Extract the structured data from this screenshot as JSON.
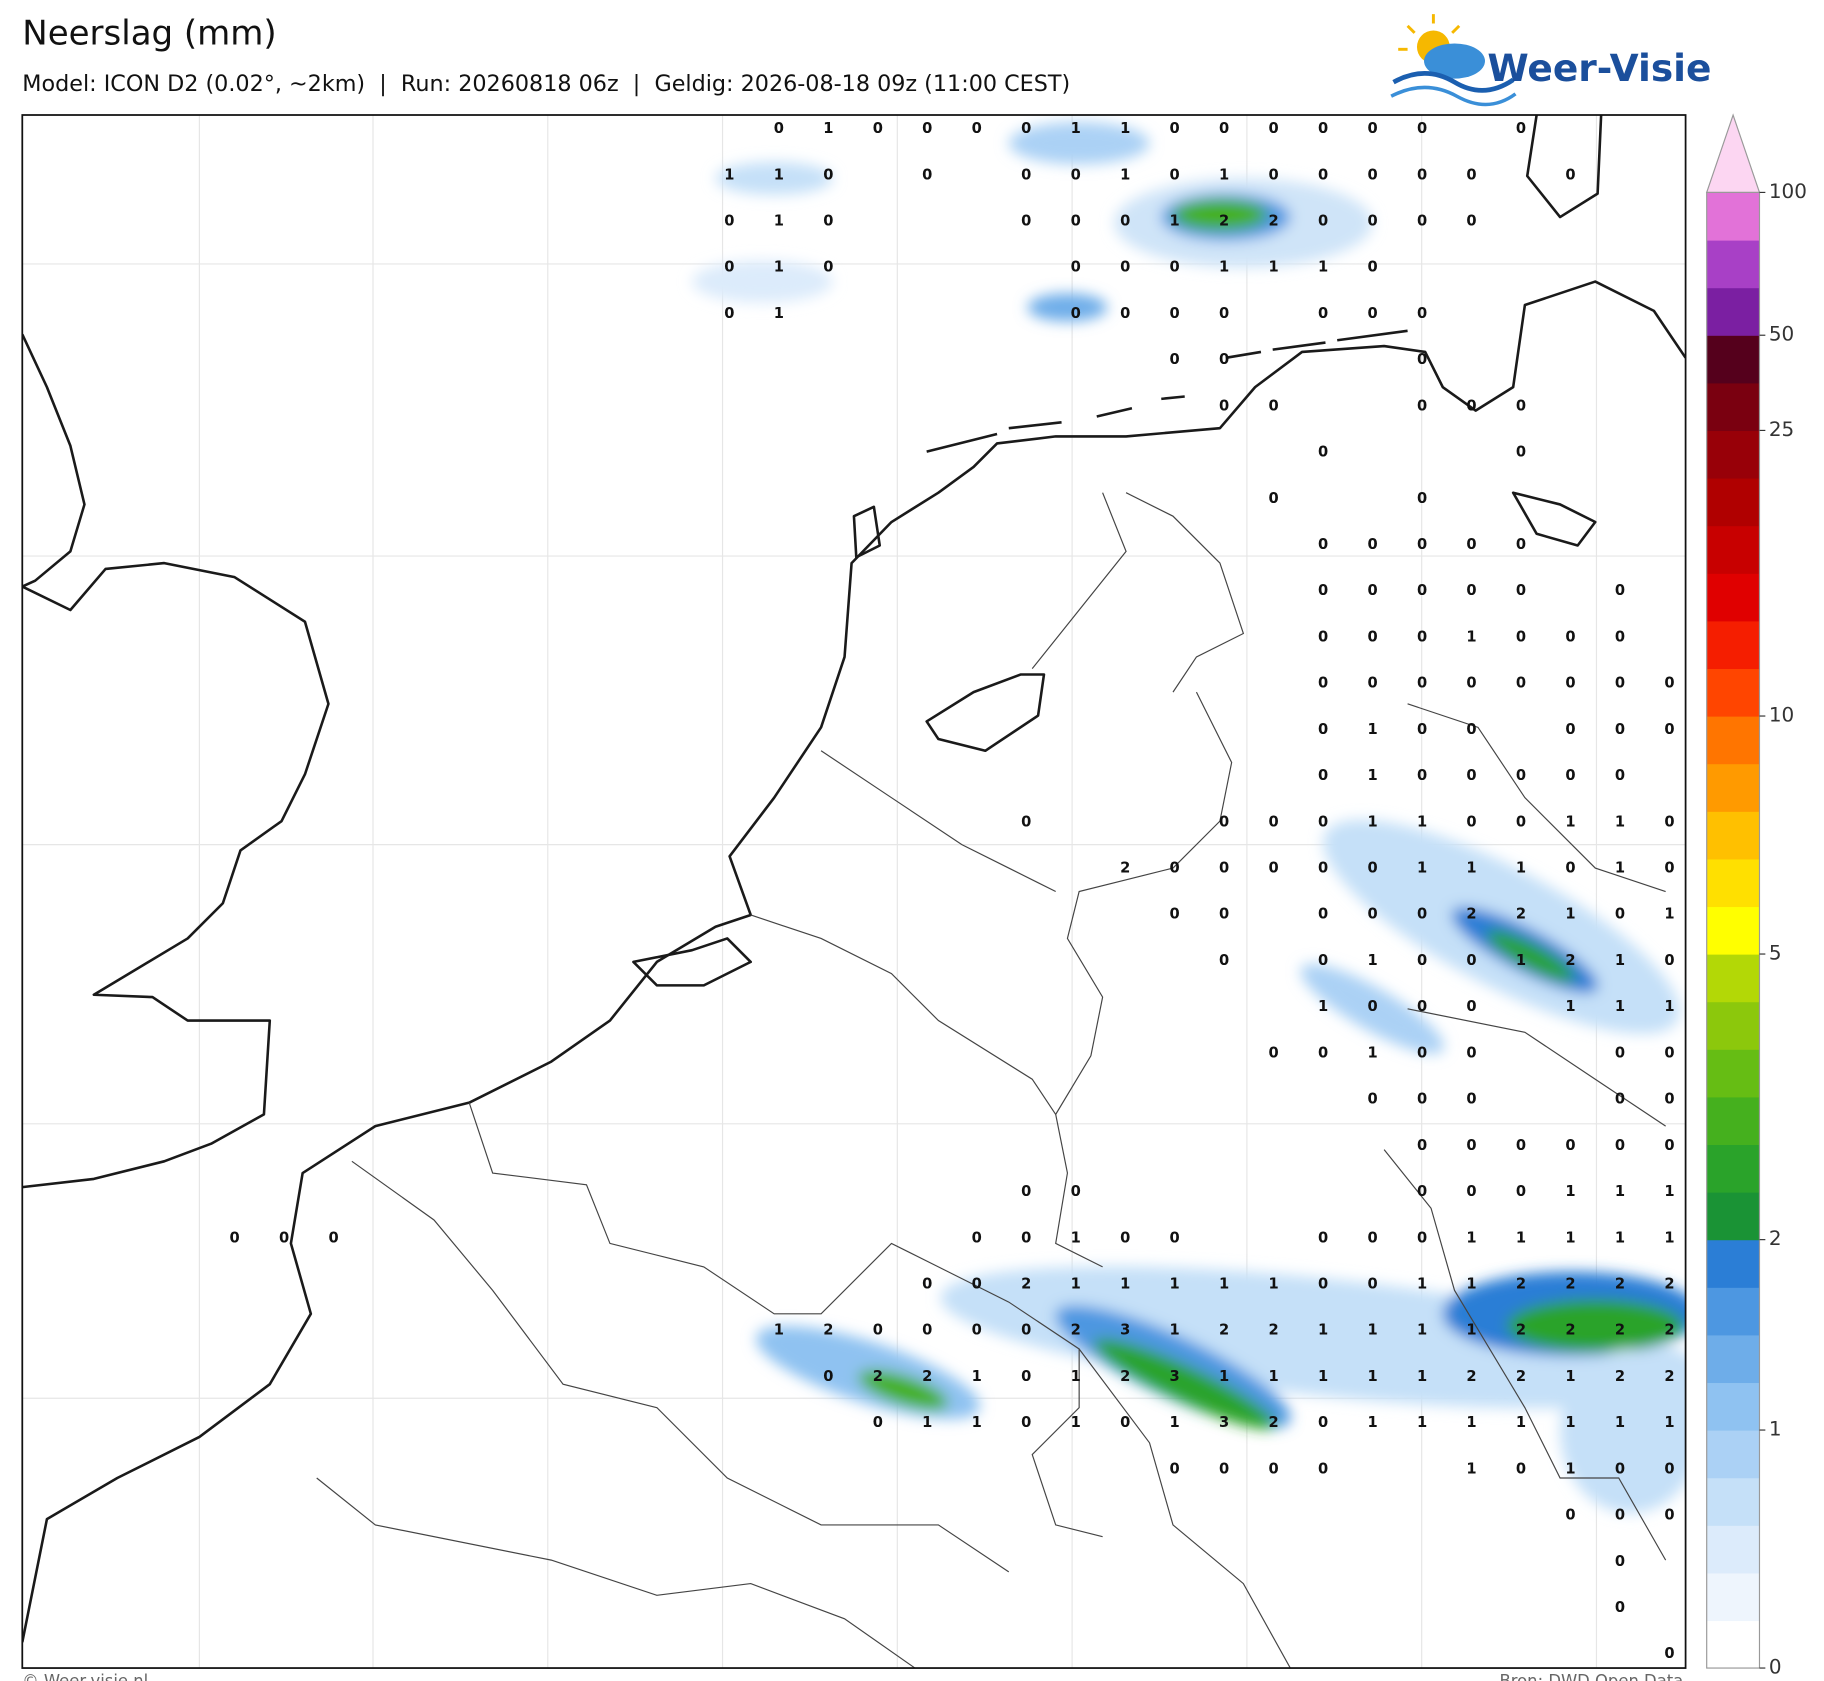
{
  "header": {
    "title": "Neerslag (mm)",
    "subtitle": "Model: ICON D2 (0.02°, ~2km)  |  Run: 20260818 06z  |  Geldig: 2026-08-18 09z (11:00 CEST)",
    "logo": "Weer-Visie"
  },
  "map": {
    "label_rows": [
      [
        null,
        null,
        null,
        null,
        null,
        null,
        null,
        null,
        null,
        null,
        null,
        0,
        1,
        0,
        0,
        0,
        0,
        1,
        1,
        0,
        0,
        0,
        0,
        0,
        0,
        null,
        0,
        null,
        null,
        null
      ],
      [
        null,
        null,
        null,
        null,
        null,
        null,
        null,
        null,
        null,
        null,
        1,
        1,
        0,
        null,
        0,
        null,
        0,
        0,
        1,
        0,
        1,
        0,
        0,
        0,
        0,
        0,
        null,
        0,
        null,
        null
      ],
      [
        null,
        null,
        null,
        null,
        null,
        null,
        null,
        null,
        null,
        null,
        0,
        1,
        0,
        null,
        null,
        null,
        0,
        0,
        0,
        1,
        2,
        2,
        0,
        0,
        0,
        0,
        null,
        null,
        null,
        null
      ],
      [
        null,
        null,
        null,
        null,
        null,
        null,
        null,
        null,
        null,
        null,
        0,
        1,
        0,
        null,
        null,
        null,
        null,
        0,
        0,
        0,
        1,
        1,
        1,
        0,
        null,
        null,
        null,
        null,
        null,
        null
      ],
      [
        null,
        null,
        null,
        null,
        null,
        null,
        null,
        null,
        null,
        null,
        0,
        1,
        null,
        null,
        null,
        null,
        null,
        0,
        0,
        0,
        0,
        null,
        0,
        0,
        0,
        null,
        null,
        null,
        null,
        null
      ],
      [
        null,
        null,
        null,
        null,
        null,
        null,
        null,
        null,
        null,
        null,
        null,
        null,
        null,
        null,
        null,
        null,
        null,
        null,
        null,
        0,
        0,
        null,
        null,
        null,
        0,
        null,
        null,
        null,
        null,
        null
      ],
      [
        null,
        null,
        null,
        null,
        null,
        null,
        null,
        null,
        null,
        null,
        null,
        null,
        null,
        null,
        null,
        null,
        null,
        null,
        null,
        null,
        0,
        0,
        null,
        null,
        0,
        0,
        0,
        null,
        null,
        null
      ],
      [
        null,
        null,
        null,
        null,
        null,
        null,
        null,
        null,
        null,
        null,
        null,
        null,
        null,
        null,
        null,
        null,
        null,
        null,
        null,
        null,
        null,
        null,
        0,
        null,
        null,
        null,
        0,
        null,
        null,
        null
      ],
      [
        null,
        null,
        null,
        null,
        null,
        null,
        null,
        null,
        null,
        null,
        null,
        null,
        null,
        null,
        null,
        null,
        null,
        null,
        null,
        null,
        null,
        0,
        null,
        null,
        0,
        null,
        null,
        null,
        null,
        null
      ],
      [
        null,
        null,
        null,
        null,
        null,
        null,
        null,
        null,
        null,
        null,
        null,
        null,
        null,
        null,
        null,
        null,
        null,
        null,
        null,
        null,
        null,
        null,
        0,
        0,
        0,
        0,
        0,
        null,
        null,
        null
      ],
      [
        null,
        null,
        null,
        null,
        null,
        null,
        null,
        null,
        null,
        null,
        null,
        null,
        null,
        null,
        null,
        null,
        null,
        null,
        null,
        null,
        null,
        null,
        0,
        0,
        0,
        0,
        0,
        null,
        0,
        null
      ],
      [
        null,
        null,
        null,
        null,
        null,
        null,
        null,
        null,
        null,
        null,
        null,
        null,
        null,
        null,
        null,
        null,
        null,
        null,
        null,
        null,
        null,
        null,
        0,
        0,
        0,
        1,
        0,
        0,
        0,
        null
      ],
      [
        null,
        null,
        null,
        null,
        null,
        null,
        null,
        null,
        null,
        null,
        null,
        null,
        null,
        null,
        null,
        null,
        null,
        null,
        null,
        null,
        null,
        null,
        0,
        0,
        0,
        0,
        0,
        0,
        0,
        0
      ],
      [
        null,
        null,
        null,
        null,
        null,
        null,
        null,
        null,
        null,
        null,
        null,
        null,
        null,
        null,
        null,
        null,
        null,
        null,
        null,
        null,
        null,
        null,
        0,
        1,
        0,
        0,
        null,
        0,
        0,
        0
      ],
      [
        null,
        null,
        null,
        null,
        null,
        null,
        null,
        null,
        null,
        null,
        null,
        null,
        null,
        null,
        null,
        null,
        null,
        null,
        null,
        null,
        null,
        null,
        0,
        1,
        0,
        0,
        0,
        0,
        0,
        null
      ],
      [
        null,
        null,
        null,
        null,
        null,
        null,
        null,
        null,
        null,
        null,
        null,
        null,
        null,
        null,
        null,
        null,
        0,
        null,
        null,
        null,
        0,
        0,
        0,
        1,
        1,
        0,
        0,
        1,
        1,
        0
      ],
      [
        null,
        null,
        null,
        null,
        null,
        null,
        null,
        null,
        null,
        null,
        null,
        null,
        null,
        null,
        null,
        null,
        null,
        null,
        2,
        0,
        0,
        0,
        0,
        0,
        1,
        1,
        1,
        0,
        1,
        0
      ],
      [
        null,
        null,
        null,
        null,
        null,
        null,
        null,
        null,
        null,
        null,
        null,
        null,
        null,
        null,
        null,
        null,
        null,
        null,
        null,
        0,
        0,
        null,
        0,
        0,
        0,
        2,
        2,
        1,
        0,
        1
      ],
      [
        null,
        null,
        null,
        null,
        null,
        null,
        null,
        null,
        null,
        null,
        null,
        null,
        null,
        null,
        null,
        null,
        null,
        null,
        null,
        null,
        0,
        null,
        0,
        1,
        0,
        0,
        1,
        2,
        1,
        0
      ],
      [
        null,
        null,
        null,
        null,
        null,
        null,
        null,
        null,
        null,
        null,
        null,
        null,
        null,
        null,
        null,
        null,
        null,
        null,
        null,
        null,
        null,
        null,
        1,
        0,
        0,
        0,
        null,
        1,
        1,
        1
      ],
      [
        null,
        null,
        null,
        null,
        null,
        null,
        null,
        null,
        null,
        null,
        null,
        null,
        null,
        null,
        null,
        null,
        null,
        null,
        null,
        null,
        null,
        0,
        0,
        1,
        0,
        0,
        null,
        null,
        0,
        0
      ],
      [
        null,
        null,
        null,
        null,
        null,
        null,
        null,
        null,
        null,
        null,
        null,
        null,
        null,
        null,
        null,
        null,
        null,
        null,
        null,
        null,
        null,
        null,
        null,
        0,
        0,
        0,
        null,
        null,
        0,
        0
      ],
      [
        null,
        null,
        null,
        null,
        null,
        null,
        null,
        null,
        null,
        null,
        null,
        null,
        null,
        null,
        null,
        null,
        null,
        null,
        null,
        null,
        null,
        null,
        null,
        null,
        0,
        0,
        0,
        0,
        0,
        0
      ],
      [
        null,
        null,
        null,
        null,
        null,
        null,
        null,
        null,
        null,
        null,
        null,
        null,
        null,
        null,
        null,
        null,
        0,
        0,
        null,
        null,
        null,
        null,
        null,
        null,
        0,
        0,
        0,
        1,
        1,
        1
      ],
      [
        0,
        0,
        0,
        null,
        null,
        null,
        null,
        null,
        null,
        null,
        null,
        null,
        null,
        null,
        null,
        0,
        0,
        1,
        0,
        0,
        null,
        null,
        0,
        0,
        0,
        1,
        1,
        1,
        1,
        1
      ],
      [
        null,
        null,
        null,
        null,
        null,
        null,
        null,
        null,
        null,
        null,
        null,
        null,
        null,
        null,
        0,
        0,
        2,
        1,
        1,
        1,
        1,
        1,
        0,
        0,
        1,
        1,
        2,
        2,
        2,
        2
      ],
      [
        null,
        null,
        null,
        null,
        null,
        null,
        null,
        null,
        null,
        null,
        null,
        1,
        2,
        0,
        0,
        0,
        0,
        2,
        3,
        1,
        2,
        2,
        1,
        1,
        1,
        1,
        2,
        2,
        2,
        2
      ],
      [
        null,
        null,
        null,
        null,
        null,
        null,
        null,
        null,
        null,
        null,
        null,
        null,
        0,
        2,
        2,
        1,
        0,
        1,
        2,
        3,
        1,
        1,
        1,
        1,
        1,
        2,
        2,
        1,
        2,
        2
      ],
      [
        null,
        null,
        null,
        null,
        null,
        null,
        null,
        null,
        null,
        null,
        null,
        null,
        null,
        0,
        1,
        1,
        0,
        1,
        0,
        1,
        3,
        2,
        0,
        1,
        1,
        1,
        1,
        1,
        1,
        1
      ],
      [
        null,
        null,
        null,
        null,
        null,
        null,
        null,
        null,
        null,
        null,
        null,
        null,
        null,
        null,
        null,
        null,
        null,
        null,
        null,
        0,
        0,
        0,
        0,
        null,
        null,
        1,
        0,
        1,
        0,
        0
      ],
      [
        null,
        null,
        null,
        null,
        null,
        null,
        null,
        null,
        null,
        null,
        null,
        null,
        null,
        null,
        null,
        null,
        null,
        null,
        null,
        null,
        null,
        null,
        null,
        null,
        null,
        null,
        null,
        0,
        0,
        0
      ],
      [
        null,
        null,
        null,
        null,
        null,
        null,
        null,
        null,
        null,
        null,
        null,
        null,
        null,
        null,
        null,
        null,
        null,
        null,
        null,
        null,
        null,
        null,
        null,
        null,
        null,
        null,
        null,
        null,
        0,
        null
      ],
      [
        null,
        null,
        null,
        null,
        null,
        null,
        null,
        null,
        null,
        null,
        null,
        null,
        null,
        null,
        null,
        null,
        null,
        null,
        null,
        null,
        null,
        null,
        null,
        null,
        null,
        null,
        null,
        null,
        0,
        null
      ],
      [
        null,
        null,
        null,
        null,
        null,
        null,
        null,
        null,
        null,
        null,
        null,
        null,
        null,
        null,
        null,
        null,
        null,
        null,
        null,
        null,
        null,
        null,
        null,
        null,
        null,
        null,
        null,
        null,
        null,
        0
      ]
    ]
  },
  "colorbar": {
    "colors": [
      "#ffffff",
      "#eef5fd",
      "#dcebfb",
      "#c5e0f8",
      "#abd1f5",
      "#8fc2f1",
      "#6eade9",
      "#4d97e1",
      "#2b7ed6",
      "#1a9335",
      "#2aa32a",
      "#45b01e",
      "#66bd14",
      "#8cc80c",
      "#b3d806",
      "#ffff00",
      "#ffe000",
      "#ffc000",
      "#ff9a00",
      "#ff7500",
      "#ff4500",
      "#f51e00",
      "#e00000",
      "#c80000",
      "#b00000",
      "#980008",
      "#7a0010",
      "#55001c",
      "#7b1fa2",
      "#a840c6",
      "#e272d8"
    ],
    "extend_color": "#fcd6f2",
    "ticks": [
      0,
      1,
      2,
      5,
      10,
      25,
      50,
      100
    ]
  },
  "footer": {
    "left": "© Weer-visie.nl",
    "right": "Bron: DWD Open Data"
  }
}
